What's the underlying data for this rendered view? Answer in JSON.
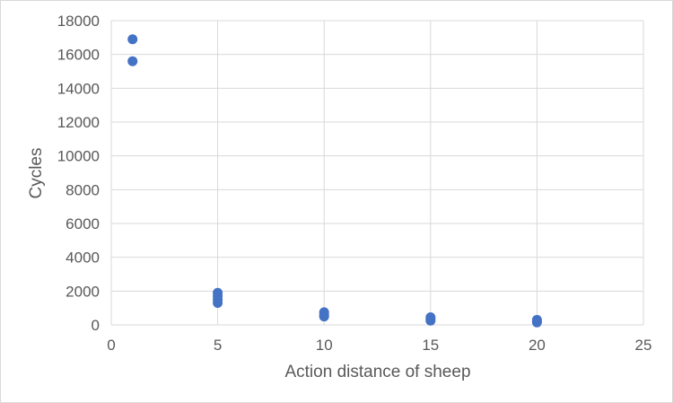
{
  "chart_data": {
    "type": "scatter",
    "title": "",
    "xlabel": "Action distance of sheep",
    "ylabel": "Cycles",
    "xlim": [
      0,
      25
    ],
    "ylim": [
      0,
      18000
    ],
    "x_ticks": [
      0,
      5,
      10,
      15,
      20,
      25
    ],
    "y_ticks": [
      0,
      2000,
      4000,
      6000,
      8000,
      10000,
      12000,
      14000,
      16000,
      18000
    ],
    "grid": true,
    "legend": "none",
    "marker_color": "#4472c4",
    "series": [
      {
        "x": [
          1,
          1,
          5,
          5,
          5,
          5,
          10,
          10,
          10,
          15,
          15,
          15,
          20,
          20,
          20
        ],
        "y": [
          16900,
          15600,
          1900,
          1700,
          1500,
          1300,
          750,
          600,
          500,
          450,
          350,
          250,
          300,
          200,
          150
        ]
      }
    ]
  }
}
